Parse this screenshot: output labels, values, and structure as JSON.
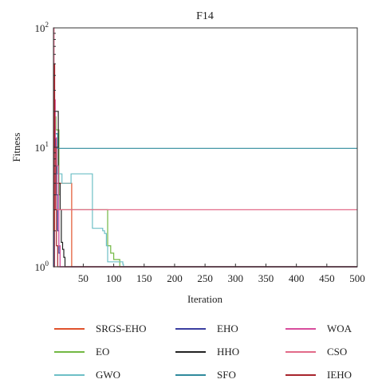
{
  "chart_data": {
    "type": "line",
    "title": "F14",
    "xlabel": "Iteration",
    "ylabel": "Fitness",
    "xlim": [
      1,
      500
    ],
    "ylim": [
      1,
      100
    ],
    "yscale": "log",
    "grid": false,
    "legend_position": "bottom",
    "x_ticks": [
      50,
      100,
      150,
      200,
      250,
      300,
      350,
      400,
      450,
      500
    ],
    "y_ticks": [
      {
        "value": 1,
        "base": "10",
        "exp": "0"
      },
      {
        "value": 10,
        "base": "10",
        "exp": "1"
      },
      {
        "value": 100,
        "base": "10",
        "exp": "2"
      }
    ],
    "series": [
      {
        "name": "SRGS-EHO",
        "color": "#e0522c",
        "x": [
          1,
          3,
          5,
          7,
          30,
          31,
          32,
          500
        ],
        "y": [
          1.0,
          12.0,
          5.0,
          5.0,
          5.0,
          1.0,
          1.0,
          1.0
        ]
      },
      {
        "name": "EO",
        "color": "#72b843",
        "x": [
          1,
          3,
          5,
          10,
          12,
          15,
          88,
          90,
          95,
          100,
          110,
          500
        ],
        "y": [
          20.0,
          18.0,
          14.0,
          4.0,
          3.0,
          3.0,
          3.0,
          1.5,
          1.3,
          1.15,
          1.0,
          1.0
        ]
      },
      {
        "name": "GWO",
        "color": "#6dbfc6",
        "x": [
          1,
          4,
          7,
          15,
          30,
          52,
          60,
          65,
          82,
          85,
          88,
          90,
          115,
          116,
          500
        ],
        "y": [
          9.0,
          7.0,
          6.0,
          5.0,
          6.0,
          6.0,
          6.0,
          2.1,
          2.0,
          1.9,
          1.5,
          1.1,
          1.05,
          1.0,
          1.0
        ]
      },
      {
        "name": "EHO",
        "color": "#3a3ea0",
        "x": [
          1,
          2,
          4,
          6,
          8,
          10,
          12,
          500
        ],
        "y": [
          1.0,
          15.0,
          10.0,
          4.0,
          2.0,
          1.3,
          1.0,
          1.0
        ]
      },
      {
        "name": "HHO",
        "color": "#222222",
        "x": [
          1,
          3,
          6,
          9,
          12,
          14,
          16,
          18,
          20,
          500
        ],
        "y": [
          21.0,
          20.0,
          20.0,
          5.0,
          3.0,
          1.6,
          1.4,
          1.2,
          1.0,
          1.0
        ]
      },
      {
        "name": "SFO",
        "color": "#2f8a9c",
        "x": [
          1,
          8,
          500
        ],
        "y": [
          13.0,
          9.8,
          9.8
        ]
      },
      {
        "name": "WOA",
        "color": "#d84c9c",
        "x": [
          1,
          2,
          4,
          6,
          9,
          10,
          12,
          500
        ],
        "y": [
          15.0,
          25.0,
          12.0,
          7.0,
          3.0,
          1.5,
          1.0,
          1.0
        ]
      },
      {
        "name": "CSO",
        "color": "#e26a88",
        "x": [
          1,
          2,
          3,
          4,
          500
        ],
        "y": [
          100.0,
          50.0,
          10.0,
          3.0,
          3.0
        ]
      },
      {
        "name": "IEHO",
        "color": "#a8242c",
        "x": [
          1,
          2,
          3,
          5,
          6,
          8,
          500
        ],
        "y": [
          2.0,
          50.0,
          10.0,
          3.0,
          1.5,
          1.0,
          1.0
        ]
      }
    ]
  }
}
